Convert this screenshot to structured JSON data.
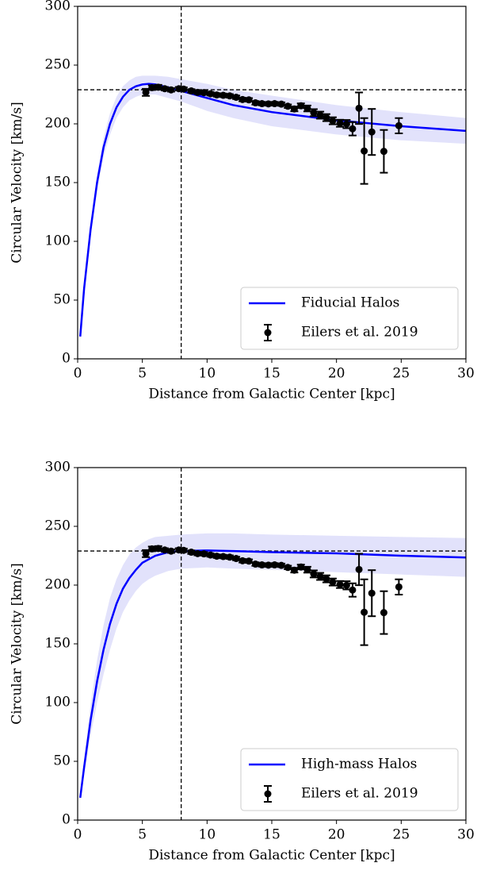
{
  "chart_data": [
    {
      "type": "line",
      "xlabel": "Distance from Galactic Center [kpc]",
      "ylabel": "Circular Velocity [km/s]",
      "xlim": [
        0,
        30
      ],
      "ylim": [
        0,
        300
      ],
      "xticks": [
        0,
        5,
        10,
        15,
        20,
        25,
        30
      ],
      "yticks": [
        0,
        50,
        100,
        150,
        200,
        250,
        300
      ],
      "hline": 229,
      "vline": 8,
      "legend": "lower right",
      "series": [
        {
          "name": "Fiducial Halos",
          "color": "#0000ff",
          "band_color": "#e2e2fb",
          "x": [
            0.2,
            0.5,
            1,
            1.5,
            2,
            2.5,
            3,
            3.5,
            4,
            4.5,
            5,
            5.5,
            6,
            7,
            8,
            10,
            12,
            15,
            20,
            25,
            30
          ],
          "values": [
            19,
            60,
            110,
            150,
            180,
            200,
            214,
            223,
            229,
            232,
            233.5,
            234,
            233.5,
            231,
            228,
            222,
            216,
            210,
            203,
            198,
            194
          ],
          "band_upper": [
            20,
            63,
            115,
            157,
            188,
            209,
            223,
            232,
            237,
            240,
            241,
            241,
            241,
            240,
            238,
            234,
            229,
            224,
            216,
            210,
            205
          ],
          "band_lower": [
            18,
            57,
            105,
            143,
            172,
            191,
            205,
            214,
            220,
            223,
            225,
            225,
            225,
            222,
            219,
            211,
            205,
            198,
            191,
            186,
            183
          ]
        },
        {
          "name": "Eilers et al. 2019",
          "color": "#000000",
          "mark": "errorbar",
          "x": [
            5.27,
            5.74,
            6.23,
            6.73,
            7.22,
            7.82,
            8.19,
            8.78,
            9.27,
            9.76,
            10.26,
            10.75,
            11.25,
            11.75,
            12.25,
            12.74,
            13.23,
            13.74,
            14.24,
            14.74,
            15.22,
            15.74,
            16.24,
            16.74,
            17.25,
            17.75,
            18.24,
            18.74,
            19.22,
            19.71,
            20.27,
            20.78,
            21.24,
            21.74,
            22.14,
            22.73,
            23.66,
            24.82
          ],
          "values": [
            226.8,
            230.8,
            231.2,
            229.9,
            228.9,
            229.9,
            229.6,
            228.0,
            226.8,
            226.6,
            225.6,
            224.6,
            224.3,
            223.8,
            222.6,
            220.7,
            220.4,
            217.9,
            217.2,
            217.0,
            217.2,
            216.8,
            215.0,
            212.7,
            215.4,
            213.1,
            209.5,
            207.4,
            205.3,
            202.6,
            200.5,
            199.8,
            195.8,
            213.3,
            176.9,
            193.1,
            176.6,
            198.4
          ],
          "errors": [
            3,
            2,
            2,
            1.5,
            1.5,
            1.5,
            1.5,
            1.5,
            1.5,
            1.5,
            1.5,
            1.5,
            1.5,
            1.5,
            1.5,
            1.5,
            1.5,
            1.5,
            1.5,
            1.5,
            1.5,
            1.5,
            1.5,
            2,
            2,
            2.5,
            3,
            3,
            3,
            3,
            3,
            3.5,
            5.7,
            13.4,
            28,
            19.6,
            18.2,
            6.5
          ]
        }
      ]
    },
    {
      "type": "line",
      "xlabel": "Distance from Galactic Center [kpc]",
      "ylabel": "Circular Velocity [km/s]",
      "xlim": [
        0,
        30
      ],
      "ylim": [
        0,
        300
      ],
      "xticks": [
        0,
        5,
        10,
        15,
        20,
        25,
        30
      ],
      "yticks": [
        0,
        50,
        100,
        150,
        200,
        250,
        300
      ],
      "hline": 229,
      "vline": 8,
      "legend": "lower right",
      "series": [
        {
          "name": "High-mass Halos",
          "color": "#0000ff",
          "band_color": "#e2e2fb",
          "x": [
            0.2,
            0.5,
            1,
            1.5,
            2,
            2.5,
            3,
            3.5,
            4,
            4.5,
            5,
            5.5,
            6,
            7,
            8,
            10,
            12,
            15,
            20,
            25,
            30
          ],
          "values": [
            19,
            45,
            85,
            118,
            145,
            167,
            184,
            197,
            206,
            213,
            219,
            222,
            225,
            228,
            229,
            229.5,
            229,
            228,
            227,
            225,
            223.5
          ],
          "band_upper": [
            21,
            52,
            98,
            136,
            166,
            189,
            205,
            217,
            226,
            232,
            236,
            239,
            241,
            242,
            243,
            244,
            244,
            243,
            242,
            241,
            240
          ],
          "band_lower": [
            17,
            38,
            72,
            100,
            124,
            145,
            163,
            177,
            187,
            195,
            201,
            205,
            208,
            212,
            214,
            215,
            214,
            213,
            211,
            209,
            207
          ]
        },
        {
          "name": "Eilers et al. 2019",
          "color": "#000000",
          "mark": "errorbar",
          "x": [
            5.27,
            5.74,
            6.23,
            6.73,
            7.22,
            7.82,
            8.19,
            8.78,
            9.27,
            9.76,
            10.26,
            10.75,
            11.25,
            11.75,
            12.25,
            12.74,
            13.23,
            13.74,
            14.24,
            14.74,
            15.22,
            15.74,
            16.24,
            16.74,
            17.25,
            17.75,
            18.24,
            18.74,
            19.22,
            19.71,
            20.27,
            20.78,
            21.24,
            21.74,
            22.14,
            22.73,
            23.66,
            24.82
          ],
          "values": [
            226.8,
            230.8,
            231.2,
            229.9,
            228.9,
            229.9,
            229.6,
            228.0,
            226.8,
            226.6,
            225.6,
            224.6,
            224.3,
            223.8,
            222.6,
            220.7,
            220.4,
            217.9,
            217.2,
            217.0,
            217.2,
            216.8,
            215.0,
            212.7,
            215.4,
            213.1,
            209.5,
            207.4,
            205.3,
            202.6,
            200.5,
            199.8,
            195.8,
            213.3,
            176.9,
            193.1,
            176.6,
            198.4
          ],
          "errors": [
            3,
            2,
            2,
            1.5,
            1.5,
            1.5,
            1.5,
            1.5,
            1.5,
            1.5,
            1.5,
            1.5,
            1.5,
            1.5,
            1.5,
            1.5,
            1.5,
            1.5,
            1.5,
            1.5,
            1.5,
            1.5,
            1.5,
            2,
            2,
            2.5,
            3,
            3,
            3,
            3,
            3,
            3.5,
            5.7,
            13.4,
            28,
            19.6,
            18.2,
            6.5
          ]
        }
      ]
    }
  ]
}
